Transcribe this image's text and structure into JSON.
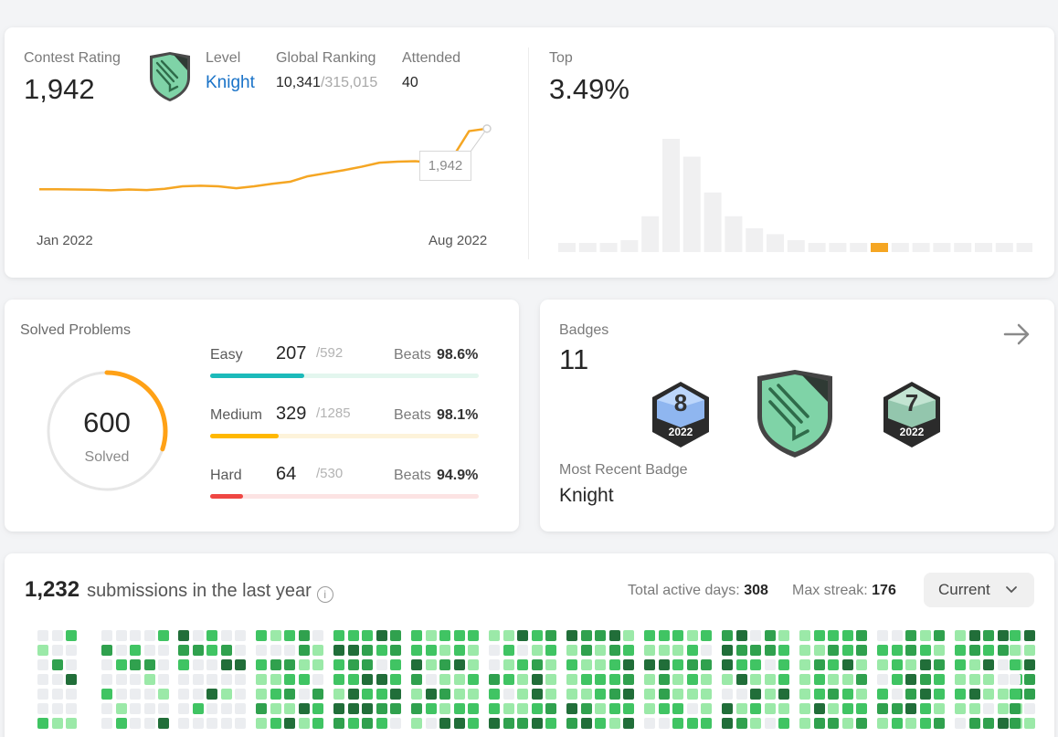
{
  "contest": {
    "rating_label": "Contest Rating",
    "rating_value": "1,942",
    "level_label": "Level",
    "level_value": "Knight",
    "ranking_label": "Global Ranking",
    "ranking_value": "10,341",
    "ranking_total": "/315,015",
    "attended_label": "Attended",
    "attended_value": "40",
    "top_label": "Top",
    "top_value": "3.49%",
    "tooltip_value": "1,942",
    "x_start": "Jan 2022",
    "x_end": "Aug 2022",
    "line_color": "#f5a623",
    "highlight_color": "#f5a623"
  },
  "chart_data": [
    {
      "type": "line",
      "x": [
        "Jan 2022",
        "",
        "",
        "",
        "",
        "",
        "",
        "",
        "",
        "",
        "",
        "",
        "",
        "",
        "",
        "",
        "",
        "",
        "",
        "",
        "",
        "",
        "",
        "",
        "",
        "Aug 2022"
      ],
      "series": [
        {
          "values": [
            1700,
            1700,
            1699,
            1698,
            1696,
            1699,
            1697,
            1702,
            1712,
            1714,
            1712,
            1704,
            1712,
            1722,
            1730,
            1752,
            1764,
            1776,
            1790,
            1806,
            1810,
            1812,
            1806,
            1818,
            1932,
            1942
          ]
        }
      ]
    },
    {
      "type": "bar",
      "values": [
        1,
        1,
        1,
        2,
        6,
        19,
        16,
        10,
        6,
        4,
        3,
        2,
        1,
        1,
        1,
        1,
        1,
        1,
        1,
        1,
        1,
        1,
        1
      ],
      "highlight_index": 15
    }
  ],
  "solved": {
    "title": "Solved Problems",
    "total": "600",
    "solved_label": "Solved",
    "progress_fraction": 0.3,
    "ring_color": "#ffa116",
    "rows": [
      {
        "name": "Easy",
        "count": "207",
        "total": "/592",
        "beats_label": "Beats",
        "beats": "98.6%",
        "fraction": 0.35,
        "color": "#1cbaba",
        "track": "#e3f6ee"
      },
      {
        "name": "Medium",
        "count": "329",
        "total": "/1285",
        "beats_label": "Beats",
        "beats": "98.1%",
        "fraction": 0.256,
        "color": "#ffb800",
        "track": "#fdf3da"
      },
      {
        "name": "Hard",
        "count": "64",
        "total": "/530",
        "beats_label": "Beats",
        "beats": "94.9%",
        "fraction": 0.121,
        "color": "#ef4743",
        "track": "#fce3e3"
      }
    ]
  },
  "badges": {
    "title": "Badges",
    "count": "11",
    "badge_left_number": "8",
    "badge_left_year": "2022",
    "badge_right_number": "7",
    "badge_right_year": "2022",
    "recent_label": "Most Recent Badge",
    "recent_value": "Knight",
    "arrow_icon": "arrow-right-icon"
  },
  "submissions": {
    "count": "1,232",
    "label": "submissions in the last year",
    "active_days_label": "Total active days:",
    "active_days_value": "308",
    "max_streak_label": "Max streak:",
    "max_streak_value": "176",
    "dropdown_value": "Current",
    "colors": [
      "#ebedf0",
      "#9be9a8",
      "#40c463",
      "#30a14e",
      "#216e39"
    ]
  }
}
